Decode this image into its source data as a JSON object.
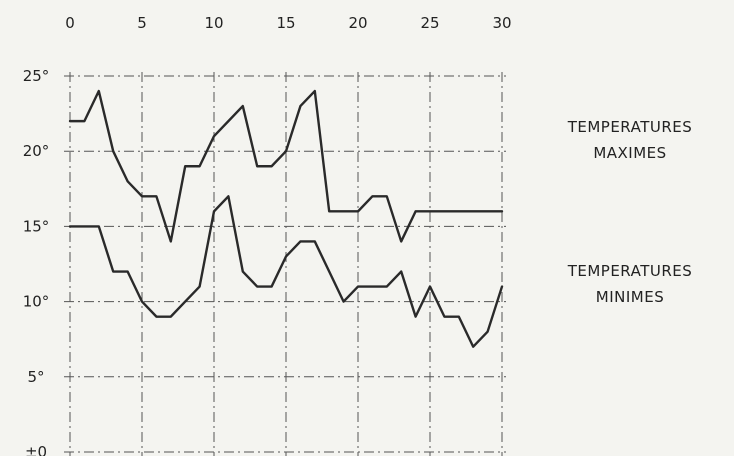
{
  "chart_data": {
    "type": "line",
    "title": "",
    "xlabel": "",
    "ylabel": "",
    "x_tick_labels": [
      "0",
      "5",
      "10",
      "15",
      "20",
      "25",
      "30"
    ],
    "y_tick_labels": [
      "25°",
      "20°",
      "15°",
      "10°",
      "5°",
      "±0"
    ],
    "xlim": [
      0,
      30
    ],
    "ylim": [
      0,
      25
    ],
    "grid": true,
    "x": [
      0,
      1,
      2,
      3,
      4,
      5,
      6,
      7,
      8,
      9,
      10,
      11,
      12,
      13,
      14,
      15,
      16,
      17,
      18,
      19,
      20,
      21,
      22,
      23,
      24,
      25,
      26,
      27,
      28,
      29,
      30
    ],
    "series": [
      {
        "name_lines": [
          "TEMPERATURES",
          "MAXIMES"
        ],
        "values": [
          22,
          22,
          24,
          20,
          18,
          17,
          17,
          14,
          19,
          19,
          21,
          22,
          23,
          19,
          19,
          20,
          23,
          24,
          16,
          16,
          16,
          17,
          17,
          14,
          16,
          16,
          16,
          16,
          16,
          16,
          16
        ]
      },
      {
        "name_lines": [
          "TEMPERATURES",
          "MINIMES"
        ],
        "values": [
          15,
          15,
          15,
          12,
          12,
          10,
          9,
          9,
          10,
          11,
          16,
          17,
          12,
          11,
          11,
          13,
          14,
          14,
          12,
          10,
          11,
          11,
          11,
          12,
          9,
          11,
          9,
          9,
          7,
          8,
          11
        ]
      }
    ],
    "line_color": "#2a2a2a",
    "grid_color": "#555555"
  }
}
